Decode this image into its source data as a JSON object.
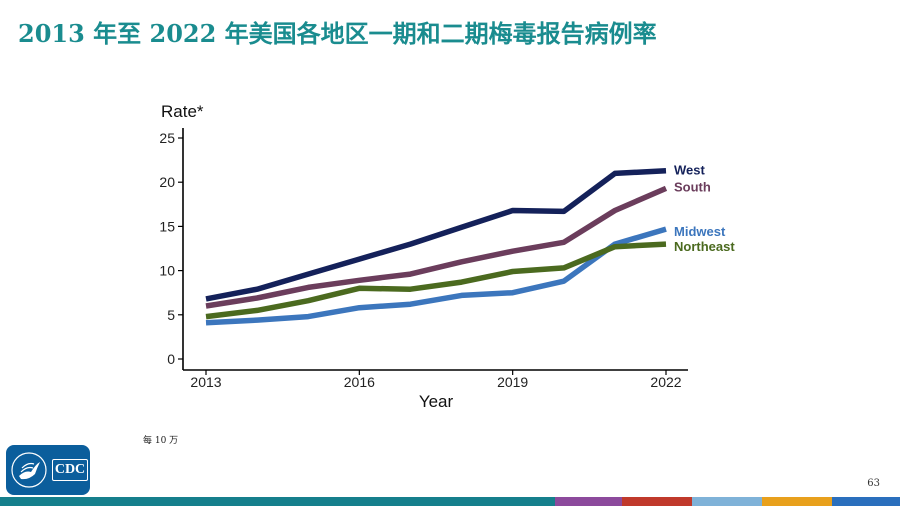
{
  "slide": {
    "title": "2013 年至 2022 年美国各地区一期和二期梅毒报告病例率",
    "footnote": "每 10 万",
    "page_number": "63",
    "logo_text": "CDC"
  },
  "colors": {
    "title": "#1a8c8f",
    "west": "#14215a",
    "south": "#6b3d5c",
    "midwest": "#3c76bd",
    "northeast": "#4b6a1f",
    "bar_teal": "#157f8c",
    "bar_purple": "#8c4a9c",
    "bar_red": "#c0392b",
    "bar_lightblue": "#7fb2d8",
    "bar_orange": "#e8a01c",
    "bar_blue": "#2a6fbd"
  },
  "chart_data": {
    "type": "line",
    "title": "",
    "xlabel": "Year",
    "ylabel": "Rate*",
    "x": [
      2013,
      2014,
      2015,
      2016,
      2017,
      2018,
      2019,
      2020,
      2021,
      2022
    ],
    "xticks": [
      "2013",
      "2016",
      "2019",
      "2022"
    ],
    "yticks": [
      "0",
      "5",
      "10",
      "15",
      "20",
      "25"
    ],
    "xlim": [
      2013,
      2022
    ],
    "ylim": [
      0,
      25
    ],
    "grid": false,
    "series": [
      {
        "name": "West",
        "color_key": "west",
        "values": [
          6.8,
          7.9,
          9.6,
          11.3,
          13.0,
          14.9,
          16.8,
          16.7,
          21.0,
          21.3
        ]
      },
      {
        "name": "South",
        "color_key": "south",
        "values": [
          6.0,
          6.9,
          8.1,
          8.9,
          9.6,
          11.0,
          12.2,
          13.2,
          16.8,
          19.3
        ]
      },
      {
        "name": "Midwest",
        "color_key": "midwest",
        "values": [
          4.1,
          4.4,
          4.8,
          5.8,
          6.2,
          7.2,
          7.5,
          8.8,
          13.0,
          14.7
        ]
      },
      {
        "name": "Northeast",
        "color_key": "northeast",
        "values": [
          4.8,
          5.5,
          6.6,
          8.0,
          7.9,
          8.7,
          9.9,
          10.3,
          12.7,
          13.0
        ]
      }
    ]
  }
}
